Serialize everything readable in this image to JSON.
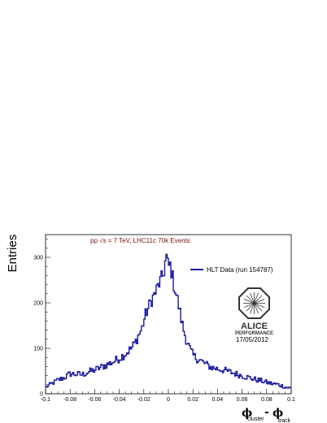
{
  "chart_data": {
    "type": "line",
    "title": "",
    "annotation": "pp √s = 7 TeV, LHC11c 70k Events",
    "ylabel": "Entries",
    "xlabel": {
      "phi_a": "ϕ",
      "sub_a": "cluster",
      "minus": "-",
      "phi_b": "ϕ",
      "sub_b": "track"
    },
    "xlim": [
      -0.1,
      0.1
    ],
    "ylim": [
      0,
      350
    ],
    "xticks": [
      "-0.1",
      "-0.08",
      "-0.06",
      "-0.04",
      "-0.02",
      "0",
      "0.02",
      "0.04",
      "0.06",
      "0.08",
      "0.1"
    ],
    "xtick_values": [
      -0.1,
      -0.08,
      -0.06,
      -0.04,
      -0.02,
      0,
      0.02,
      0.04,
      0.06,
      0.08,
      0.1
    ],
    "yticks": [
      "0",
      "100",
      "200",
      "300"
    ],
    "ytick_values": [
      0,
      100,
      200,
      300
    ],
    "grid": false,
    "legend": {
      "position": "top-right",
      "entries": [
        "HLT Data (run 154787)"
      ]
    },
    "series": [
      {
        "name": "HLT Data (run 154787)",
        "color": "#1a1aa0",
        "x": [
          -0.1,
          -0.095,
          -0.09,
          -0.085,
          -0.08,
          -0.075,
          -0.07,
          -0.065,
          -0.06,
          -0.055,
          -0.05,
          -0.045,
          -0.04,
          -0.035,
          -0.03,
          -0.027,
          -0.025,
          -0.022,
          -0.02,
          -0.018,
          -0.016,
          -0.014,
          -0.012,
          -0.01,
          -0.008,
          -0.006,
          -0.004,
          -0.003,
          -0.002,
          -0.001,
          0,
          0.001,
          0.002,
          0.003,
          0.004,
          0.006,
          0.008,
          0.01,
          0.012,
          0.014,
          0.016,
          0.018,
          0.02,
          0.022,
          0.025,
          0.03,
          0.035,
          0.04,
          0.045,
          0.05,
          0.055,
          0.06,
          0.065,
          0.07,
          0.075,
          0.08,
          0.085,
          0.09,
          0.095,
          0.1
        ],
        "y": [
          14,
          22,
          30,
          35,
          44,
          43,
          42,
          48,
          52,
          58,
          64,
          70,
          78,
          88,
          100,
          112,
          125,
          140,
          160,
          178,
          190,
          205,
          215,
          225,
          240,
          250,
          262,
          280,
          300,
          300,
          270,
          290,
          275,
          265,
          245,
          225,
          200,
          170,
          145,
          125,
          110,
          95,
          85,
          80,
          75,
          66,
          58,
          55,
          52,
          48,
          44,
          40,
          36,
          32,
          29,
          25,
          22,
          20,
          15,
          12
        ]
      }
    ]
  },
  "logo": {
    "name": "ALICE",
    "performance": "PERFORMANCE",
    "date": "17/05/2012"
  }
}
